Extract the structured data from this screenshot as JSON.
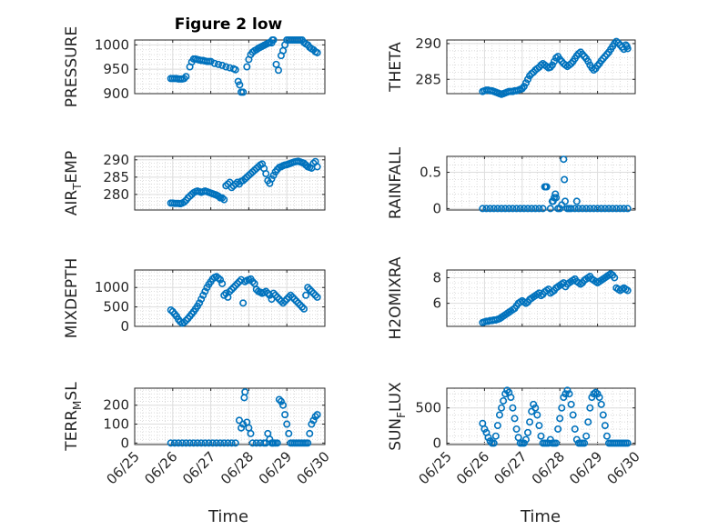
{
  "figure_title": "Figure 2 low",
  "marker_color": "#0072BD",
  "chart_data": [
    {
      "type": "scatter",
      "ylabel": "PRESSURE",
      "title": "Figure 2 low",
      "xlim": [
        0,
        5
      ],
      "ylim": [
        900,
        1010
      ],
      "yticks": [
        900,
        950,
        1000
      ],
      "x": [
        0.95,
        1.0,
        1.05,
        1.1,
        1.15,
        1.2,
        1.25,
        1.3,
        1.35,
        1.45,
        1.5,
        1.55,
        1.6,
        1.65,
        1.7,
        1.75,
        1.8,
        1.85,
        1.9,
        1.95,
        2.0,
        2.1,
        2.2,
        2.3,
        2.4,
        2.5,
        2.6,
        2.65,
        2.72,
        2.76,
        2.8,
        2.85,
        2.95,
        3.0,
        3.05,
        3.1,
        3.15,
        3.2,
        3.25,
        3.3,
        3.35,
        3.4,
        3.45,
        3.5,
        3.55,
        3.6,
        3.62,
        3.65,
        3.72,
        3.78,
        3.85,
        3.9,
        3.95,
        4.0,
        4.05,
        4.1,
        4.15,
        4.2,
        4.25,
        4.3,
        4.35,
        4.4,
        4.45,
        4.5,
        4.55,
        4.6,
        4.65,
        4.7,
        4.75,
        4.8
      ],
      "y": [
        931,
        931,
        931,
        931,
        930,
        930,
        930,
        931,
        935,
        955,
        965,
        971,
        971,
        970,
        969,
        968,
        968,
        967,
        966,
        966,
        966,
        962,
        960,
        958,
        955,
        953,
        951,
        949,
        925,
        918,
        903,
        903,
        955,
        970,
        980,
        985,
        988,
        990,
        993,
        995,
        997,
        999,
        1001,
        1003,
        1005,
        1004,
        1010,
        1010,
        960,
        948,
        978,
        988,
        1000,
        1010,
        1010,
        1010,
        1010,
        1010,
        1010,
        1010,
        1010,
        1010,
        1005,
        1002,
        1000,
        995,
        992,
        990,
        986,
        984
      ]
    },
    {
      "type": "scatter",
      "ylabel": "THETA",
      "title": "",
      "xlim": [
        0,
        5
      ],
      "ylim": [
        283,
        290.5
      ],
      "yticks": [
        285,
        290
      ],
      "x": [
        0.95,
        1.0,
        1.05,
        1.1,
        1.15,
        1.2,
        1.25,
        1.3,
        1.35,
        1.4,
        1.45,
        1.5,
        1.55,
        1.6,
        1.65,
        1.7,
        1.75,
        1.8,
        1.85,
        1.9,
        1.95,
        2.0,
        2.05,
        2.1,
        2.15,
        2.2,
        2.25,
        2.3,
        2.35,
        2.4,
        2.45,
        2.5,
        2.55,
        2.6,
        2.65,
        2.7,
        2.75,
        2.8,
        2.85,
        2.9,
        2.95,
        3.0,
        3.05,
        3.1,
        3.15,
        3.2,
        3.25,
        3.3,
        3.35,
        3.4,
        3.45,
        3.5,
        3.55,
        3.6,
        3.65,
        3.7,
        3.75,
        3.8,
        3.85,
        3.9,
        3.95,
        4.0,
        4.05,
        4.1,
        4.15,
        4.2,
        4.25,
        4.3,
        4.35,
        4.4,
        4.45,
        4.5,
        4.55,
        4.6,
        4.65,
        4.7,
        4.75,
        4.78,
        4.8
      ],
      "y": [
        283.3,
        283.4,
        283.5,
        283.5,
        283.4,
        283.4,
        283.3,
        283.2,
        283.1,
        283.0,
        282.9,
        283.0,
        283.1,
        283.2,
        283.3,
        283.3,
        283.3,
        283.4,
        283.4,
        283.5,
        283.6,
        283.7,
        284.0,
        284.5,
        285.0,
        285.5,
        285.8,
        286.0,
        286.3,
        286.5,
        286.7,
        287.0,
        287.2,
        287.0,
        286.8,
        286.6,
        286.7,
        287.0,
        287.5,
        288.0,
        288.2,
        287.8,
        287.5,
        287.2,
        287.0,
        286.8,
        287.0,
        287.2,
        287.5,
        287.9,
        288.3,
        288.6,
        288.8,
        288.5,
        288.2,
        287.9,
        287.5,
        287.0,
        286.6,
        286.3,
        286.5,
        286.9,
        287.2,
        287.6,
        287.9,
        288.2,
        288.5,
        288.8,
        289.2,
        289.6,
        290.0,
        290.3,
        290.1,
        289.8,
        289.5,
        289.2,
        289.8,
        289.6,
        289.3
      ]
    },
    {
      "type": "scatter",
      "ylabel": "AIR_TEMP",
      "title": "",
      "xlim": [
        0,
        5
      ],
      "ylim": [
        275.5,
        291
      ],
      "yticks": [
        280,
        285,
        290
      ],
      "x": [
        0.95,
        1.0,
        1.05,
        1.1,
        1.15,
        1.2,
        1.25,
        1.3,
        1.35,
        1.4,
        1.45,
        1.5,
        1.55,
        1.6,
        1.65,
        1.7,
        1.75,
        1.8,
        1.85,
        1.9,
        1.95,
        2.0,
        2.05,
        2.1,
        2.15,
        2.2,
        2.25,
        2.3,
        2.35,
        2.4,
        2.45,
        2.5,
        2.55,
        2.6,
        2.65,
        2.7,
        2.75,
        2.8,
        2.85,
        2.9,
        2.95,
        3.0,
        3.05,
        3.1,
        3.15,
        3.2,
        3.25,
        3.3,
        3.35,
        3.4,
        3.45,
        3.5,
        3.55,
        3.6,
        3.65,
        3.7,
        3.75,
        3.8,
        3.85,
        3.9,
        3.95,
        4.0,
        4.05,
        4.1,
        4.15,
        4.2,
        4.25,
        4.3,
        4.35,
        4.4,
        4.45,
        4.5,
        4.55,
        4.6,
        4.65,
        4.7,
        4.75,
        4.8
      ],
      "y": [
        277.5,
        277.5,
        277.4,
        277.4,
        277.4,
        277.3,
        277.5,
        277.8,
        278.3,
        279.0,
        279.5,
        280.0,
        280.5,
        280.8,
        281.0,
        280.8,
        280.6,
        280.8,
        281.0,
        280.8,
        280.6,
        280.4,
        280.2,
        280.0,
        279.8,
        279.5,
        279.0,
        279.0,
        278.5,
        282.5,
        283.0,
        283.5,
        282.0,
        282.5,
        283.0,
        283.5,
        283.0,
        283.8,
        284.0,
        284.5,
        285.0,
        285.5,
        286.0,
        286.5,
        287.0,
        287.5,
        288.0,
        288.5,
        288.8,
        287.5,
        286.0,
        284.0,
        283.2,
        284.5,
        285.5,
        286.5,
        287.2,
        287.8,
        288.0,
        288.3,
        288.5,
        288.6,
        288.8,
        289.0,
        289.2,
        289.4,
        289.5,
        289.6,
        289.4,
        289.2,
        289.0,
        288.5,
        288.0,
        287.8,
        287.6,
        289.0,
        289.5,
        288.0
      ]
    },
    {
      "type": "scatter",
      "ylabel": "RAINFALL",
      "title": "",
      "xlim": [
        0,
        5
      ],
      "ylim": [
        -0.02,
        0.72
      ],
      "yticks": [
        0,
        0.5
      ],
      "x": [
        0.95,
        1.05,
        1.15,
        1.25,
        1.35,
        1.45,
        1.55,
        1.65,
        1.75,
        1.85,
        1.95,
        2.05,
        2.15,
        2.25,
        2.35,
        2.45,
        2.55,
        2.6,
        2.62,
        2.65,
        2.75,
        2.8,
        2.82,
        2.85,
        2.88,
        2.9,
        2.95,
        3.0,
        3.05,
        3.1,
        3.12,
        3.14,
        3.2,
        3.25,
        3.3,
        3.4,
        3.45,
        3.5,
        3.6,
        3.7,
        3.8,
        3.9,
        4.0,
        4.1,
        4.2,
        4.3,
        4.4,
        4.5,
        4.6,
        4.7,
        4.8
      ],
      "y": [
        0,
        0,
        0,
        0,
        0,
        0,
        0,
        0,
        0,
        0,
        0,
        0,
        0,
        0,
        0,
        0,
        0,
        0.3,
        0.3,
        0.3,
        0,
        0.1,
        0.1,
        0.15,
        0.2,
        0.15,
        0,
        0,
        0.05,
        0.68,
        0.4,
        0.1,
        0,
        0,
        0,
        0,
        0.1,
        0,
        0,
        0,
        0,
        0,
        0,
        0,
        0,
        0,
        0,
        0,
        0,
        0,
        0
      ]
    },
    {
      "type": "scatter",
      "ylabel": "MIXDEPTH",
      "title": "",
      "xlim": [
        0,
        5
      ],
      "ylim": [
        0,
        1450
      ],
      "yticks": [
        0,
        500,
        1000
      ],
      "x": [
        0.95,
        1.0,
        1.05,
        1.1,
        1.15,
        1.2,
        1.25,
        1.3,
        1.35,
        1.4,
        1.45,
        1.5,
        1.55,
        1.6,
        1.65,
        1.7,
        1.75,
        1.8,
        1.85,
        1.9,
        1.95,
        2.0,
        2.05,
        2.1,
        2.15,
        2.2,
        2.25,
        2.3,
        2.35,
        2.4,
        2.45,
        2.5,
        2.55,
        2.6,
        2.65,
        2.7,
        2.75,
        2.8,
        2.85,
        2.9,
        2.95,
        3.0,
        3.05,
        3.1,
        3.15,
        3.2,
        3.25,
        3.3,
        3.35,
        3.4,
        3.45,
        3.5,
        3.55,
        3.6,
        3.65,
        3.7,
        3.75,
        3.8,
        3.85,
        3.9,
        3.95,
        4.0,
        4.05,
        4.1,
        4.15,
        4.2,
        4.25,
        4.3,
        4.35,
        4.4,
        4.45,
        4.5,
        4.55,
        4.6,
        4.65,
        4.7,
        4.75,
        4.8
      ],
      "y": [
        420,
        380,
        320,
        260,
        180,
        120,
        80,
        100,
        150,
        200,
        260,
        320,
        380,
        450,
        520,
        600,
        700,
        800,
        900,
        1000,
        1080,
        1150,
        1220,
        1260,
        1280,
        1240,
        1200,
        1100,
        800,
        850,
        750,
        900,
        950,
        1000,
        1050,
        1100,
        1150,
        1200,
        600,
        1150,
        1180,
        1200,
        1220,
        1150,
        1100,
        950,
        900,
        880,
        850,
        870,
        900,
        850,
        800,
        700,
        850,
        800,
        750,
        700,
        650,
        600,
        650,
        700,
        750,
        800,
        750,
        700,
        650,
        600,
        550,
        500,
        450,
        800,
        1000,
        950,
        900,
        850,
        800,
        750
      ]
    },
    {
      "type": "scatter",
      "ylabel": "H2OMIXRA",
      "title": "",
      "xlim": [
        0,
        5
      ],
      "ylim": [
        4.2,
        8.6
      ],
      "yticks": [
        6,
        8
      ],
      "x": [
        0.95,
        1.0,
        1.05,
        1.1,
        1.15,
        1.2,
        1.25,
        1.3,
        1.35,
        1.4,
        1.45,
        1.5,
        1.55,
        1.6,
        1.65,
        1.7,
        1.75,
        1.8,
        1.85,
        1.9,
        1.95,
        2.0,
        2.05,
        2.1,
        2.15,
        2.2,
        2.25,
        2.3,
        2.35,
        2.4,
        2.45,
        2.5,
        2.55,
        2.6,
        2.65,
        2.7,
        2.75,
        2.8,
        2.85,
        2.9,
        2.95,
        3.0,
        3.05,
        3.1,
        3.15,
        3.2,
        3.25,
        3.3,
        3.35,
        3.4,
        3.45,
        3.5,
        3.55,
        3.6,
        3.65,
        3.7,
        3.75,
        3.8,
        3.85,
        3.9,
        3.95,
        4.0,
        4.05,
        4.1,
        4.15,
        4.2,
        4.25,
        4.3,
        4.35,
        4.4,
        4.45,
        4.5,
        4.55,
        4.6,
        4.65,
        4.7,
        4.75,
        4.8
      ],
      "y": [
        4.5,
        4.55,
        4.6,
        4.6,
        4.65,
        4.65,
        4.7,
        4.7,
        4.75,
        4.8,
        4.9,
        5.0,
        5.1,
        5.2,
        5.3,
        5.4,
        5.5,
        5.6,
        5.8,
        6.0,
        6.1,
        6.2,
        6.1,
        6.0,
        6.1,
        6.3,
        6.4,
        6.5,
        6.6,
        6.7,
        6.8,
        6.6,
        6.7,
        6.9,
        7.0,
        7.1,
        6.8,
        6.9,
        7.0,
        7.2,
        7.3,
        7.4,
        7.5,
        7.6,
        7.3,
        7.5,
        7.6,
        7.7,
        7.8,
        7.9,
        7.7,
        7.6,
        7.5,
        7.6,
        7.8,
        7.9,
        8.0,
        8.1,
        7.9,
        7.8,
        7.7,
        7.6,
        7.7,
        7.8,
        7.9,
        8.0,
        8.1,
        8.2,
        8.3,
        8.2,
        8.0,
        7.2,
        7.1,
        7.0,
        7.1,
        7.2,
        7.1,
        7.0
      ]
    },
    {
      "type": "scatter",
      "ylabel": "TERR_MSL",
      "title": "",
      "xlim": [
        0,
        5
      ],
      "ylim": [
        -8,
        290
      ],
      "yticks": [
        0,
        100,
        200
      ],
      "x": [
        0.95,
        1.05,
        1.15,
        1.25,
        1.35,
        1.45,
        1.55,
        1.65,
        1.75,
        1.85,
        1.95,
        2.05,
        2.15,
        2.25,
        2.35,
        2.45,
        2.55,
        2.65,
        2.75,
        2.8,
        2.85,
        2.88,
        2.9,
        2.95,
        3.0,
        3.05,
        3.1,
        3.2,
        3.3,
        3.4,
        3.45,
        3.5,
        3.55,
        3.6,
        3.62,
        3.65,
        3.7,
        3.75,
        3.8,
        3.85,
        3.9,
        3.95,
        4.0,
        4.05,
        4.1,
        4.15,
        4.2,
        4.25,
        4.3,
        4.35,
        4.4,
        4.45,
        4.5,
        4.55,
        4.6,
        4.65,
        4.7,
        4.75,
        4.8
      ],
      "y": [
        0,
        0,
        0,
        0,
        0,
        0,
        0,
        0,
        0,
        0,
        0,
        0,
        0,
        0,
        0,
        0,
        0,
        0,
        120,
        80,
        100,
        240,
        270,
        110,
        80,
        50,
        0,
        0,
        0,
        0,
        0,
        50,
        20,
        0,
        0,
        0,
        0,
        0,
        230,
        220,
        200,
        150,
        100,
        50,
        0,
        0,
        0,
        0,
        0,
        0,
        0,
        0,
        0,
        0,
        50,
        100,
        120,
        140,
        150
      ]
    },
    {
      "type": "scatter",
      "ylabel": "SUN_FLUX",
      "title": "",
      "xlim": [
        0,
        5
      ],
      "ylim": [
        -20,
        780
      ],
      "yticks": [
        0,
        500
      ],
      "x": [
        0.95,
        1.0,
        1.05,
        1.1,
        1.15,
        1.2,
        1.25,
        1.3,
        1.35,
        1.4,
        1.45,
        1.5,
        1.55,
        1.6,
        1.65,
        1.7,
        1.75,
        1.8,
        1.85,
        1.9,
        1.95,
        2.0,
        2.05,
        2.1,
        2.15,
        2.2,
        2.25,
        2.3,
        2.35,
        2.4,
        2.45,
        2.5,
        2.55,
        2.6,
        2.65,
        2.7,
        2.75,
        2.8,
        2.85,
        2.9,
        2.95,
        3.0,
        3.05,
        3.1,
        3.15,
        3.2,
        3.25,
        3.3,
        3.35,
        3.4,
        3.45,
        3.5,
        3.55,
        3.6,
        3.65,
        3.7,
        3.75,
        3.8,
        3.85,
        3.9,
        3.95,
        4.0,
        4.05,
        4.1,
        4.15,
        4.2,
        4.25,
        4.3,
        4.35,
        4.4,
        4.45,
        4.5,
        4.55,
        4.6,
        4.65,
        4.7,
        4.75,
        4.8
      ],
      "y": [
        280,
        200,
        150,
        80,
        30,
        0,
        0,
        100,
        250,
        400,
        500,
        600,
        700,
        750,
        720,
        650,
        500,
        350,
        200,
        80,
        0,
        0,
        0,
        50,
        150,
        300,
        450,
        550,
        500,
        400,
        250,
        100,
        0,
        0,
        0,
        0,
        50,
        0,
        0,
        0,
        200,
        350,
        500,
        650,
        700,
        750,
        700,
        550,
        400,
        200,
        50,
        0,
        0,
        0,
        0,
        100,
        300,
        500,
        650,
        700,
        720,
        700,
        650,
        550,
        400,
        250,
        100,
        0,
        0,
        0,
        0,
        0,
        0,
        0,
        0,
        0,
        0,
        0
      ]
    }
  ],
  "axes": {
    "xticks": [
      "06/25",
      "06/26",
      "06/27",
      "06/28",
      "06/29",
      "06/30"
    ],
    "xlabel": "Time",
    "grid": true
  }
}
